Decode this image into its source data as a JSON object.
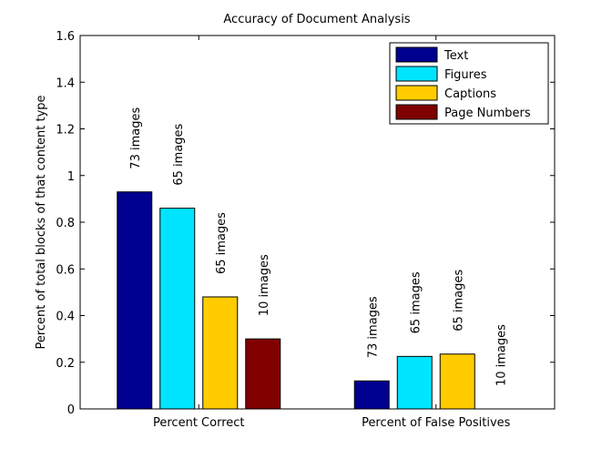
{
  "chart_data": {
    "type": "bar",
    "title": "Accuracy of Document Analysis",
    "xlabel": "",
    "ylabel": "Percent of total blocks of that content type",
    "ylim": [
      0,
      1.6
    ],
    "yticks": [
      "0",
      "0.2",
      "0.4",
      "0.6",
      "0.8",
      "1",
      "1.2",
      "1.4",
      "1.6"
    ],
    "categories": [
      "Percent Correct",
      "Percent of False Positives"
    ],
    "series": [
      {
        "name": "Text",
        "color": "#00008f",
        "values": [
          0.93,
          0.12
        ],
        "notes": [
          "73 images",
          "73 images"
        ]
      },
      {
        "name": "Figures",
        "color": "#00e5ff",
        "values": [
          0.86,
          0.225
        ],
        "notes": [
          "65 images",
          "65 images"
        ]
      },
      {
        "name": "Captions",
        "color": "#ffcc00",
        "values": [
          0.48,
          0.235
        ],
        "notes": [
          "65 images",
          "65 images"
        ]
      },
      {
        "name": "Page Numbers",
        "color": "#800000",
        "values": [
          0.3,
          0.0
        ],
        "notes": [
          "10 images",
          "10 images"
        ]
      }
    ],
    "legend_position": "top-right",
    "grid": false
  }
}
